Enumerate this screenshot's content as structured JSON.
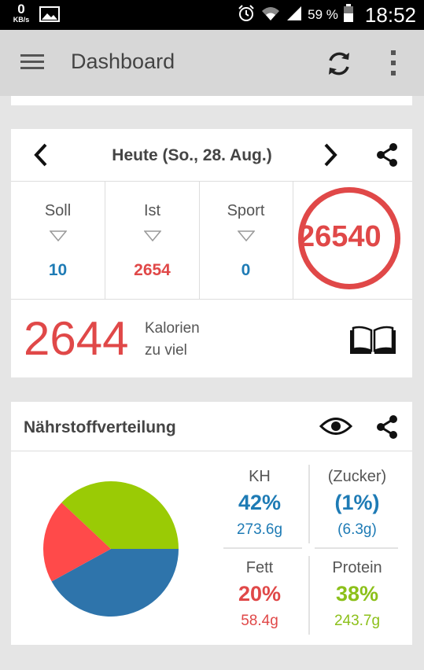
{
  "status_bar": {
    "kb_value": "0",
    "kb_unit": "KB/s",
    "battery": "59 %",
    "time": "18:52"
  },
  "app_bar": {
    "title": "Dashboard",
    "icons": [
      "menu-icon",
      "refresh-icon",
      "more-vert-icon"
    ]
  },
  "summary": {
    "date": "Heute (So., 28. Aug.)",
    "stats": [
      {
        "label": "Soll",
        "value": "10"
      },
      {
        "label": "Ist",
        "value": "2654"
      },
      {
        "label": "Sport",
        "value": "0"
      }
    ],
    "ring_value": "26540",
    "calories_value": "2644",
    "calories_line1": "Kalorien",
    "calories_line2": "zu viel"
  },
  "nutrients": {
    "title": "Nährstoffverteilung",
    "macros": [
      {
        "name": "KH",
        "percent": "42%",
        "grams": "273.6g",
        "color": "#1e7bb5"
      },
      {
        "name": "(Zucker)",
        "percent": "(1%)",
        "grams": "(6.3g)",
        "color": "#1e7bb5"
      },
      {
        "name": "Fett",
        "percent": "20%",
        "grams": "58.4g",
        "color": "#e04848"
      },
      {
        "name": "Protein",
        "percent": "38%",
        "grams": "243.7g",
        "color": "#8cc01a"
      }
    ],
    "pie": [
      {
        "name": "KH",
        "value": 42,
        "color": "#2e74ab"
      },
      {
        "name": "Fett",
        "value": 20,
        "color": "#ff4a4a"
      },
      {
        "name": "Protein",
        "value": 38,
        "color": "#9acb05"
      }
    ]
  },
  "colors": {
    "accent_blue": "#1e7bb5",
    "accent_red": "#e04848",
    "accent_green": "#8cc01a"
  }
}
